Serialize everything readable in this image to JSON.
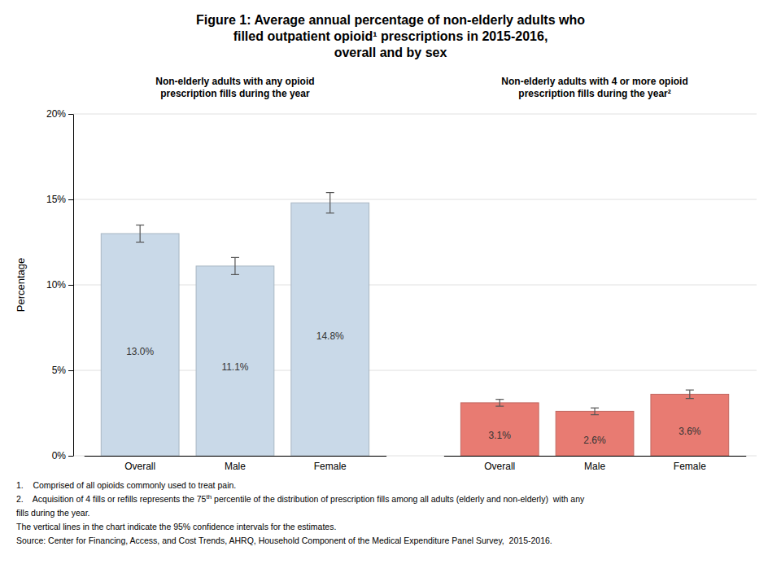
{
  "chart_data": {
    "type": "bar",
    "title": "Figure 1: Average annual percentage of non-elderly adults who\nfilled outpatient opioid¹ prescriptions in 2015-2016,\noverall and by sex",
    "categories": [
      "Overall",
      "Male",
      "Female"
    ],
    "series": [
      {
        "name": "Non-elderly adults with any opioid\nprescription fills during the year",
        "color": "#C9D9E8",
        "values": [
          13.0,
          11.1,
          14.8
        ],
        "errors": [
          0.5,
          0.5,
          0.6
        ],
        "value_labels": [
          "13.0%",
          "11.1%",
          "14.8%"
        ]
      },
      {
        "name": "Non-elderly adults with 4 or more opioid\nprescription fills during the year²",
        "color": "#E87B72",
        "values": [
          3.1,
          2.6,
          3.6
        ],
        "errors": [
          0.2,
          0.2,
          0.25
        ],
        "value_labels": [
          "3.1%",
          "2.6%",
          "3.6%"
        ]
      }
    ],
    "ylabel": "Percentage",
    "ylim": [
      0,
      20
    ],
    "yticks": [
      {
        "value": 0,
        "label": "0%"
      },
      {
        "value": 5,
        "label": "5%"
      },
      {
        "value": 10,
        "label": "10%"
      },
      {
        "value": 15,
        "label": "15%"
      },
      {
        "value": 20,
        "label": "20%"
      }
    ],
    "grid": true,
    "data_labels": true,
    "annotations": [
      "1.    Comprised of all opioids commonly used to treat pain.",
      "2.    Acquisition of 4 fills or refills represents the 75",
      "th",
      " percentile of the distribution of prescription fills among all adults (elderly and non-elderly)  with any",
      "fills during the year.",
      "The vertical lines in the chart indicate the 95% confidence intervals for the estimates.",
      "Source: Center for Financing, Access, and Cost Trends, AHRQ, Household Component of the Medical Expenditure Panel Survey,  2015-2016."
    ]
  }
}
